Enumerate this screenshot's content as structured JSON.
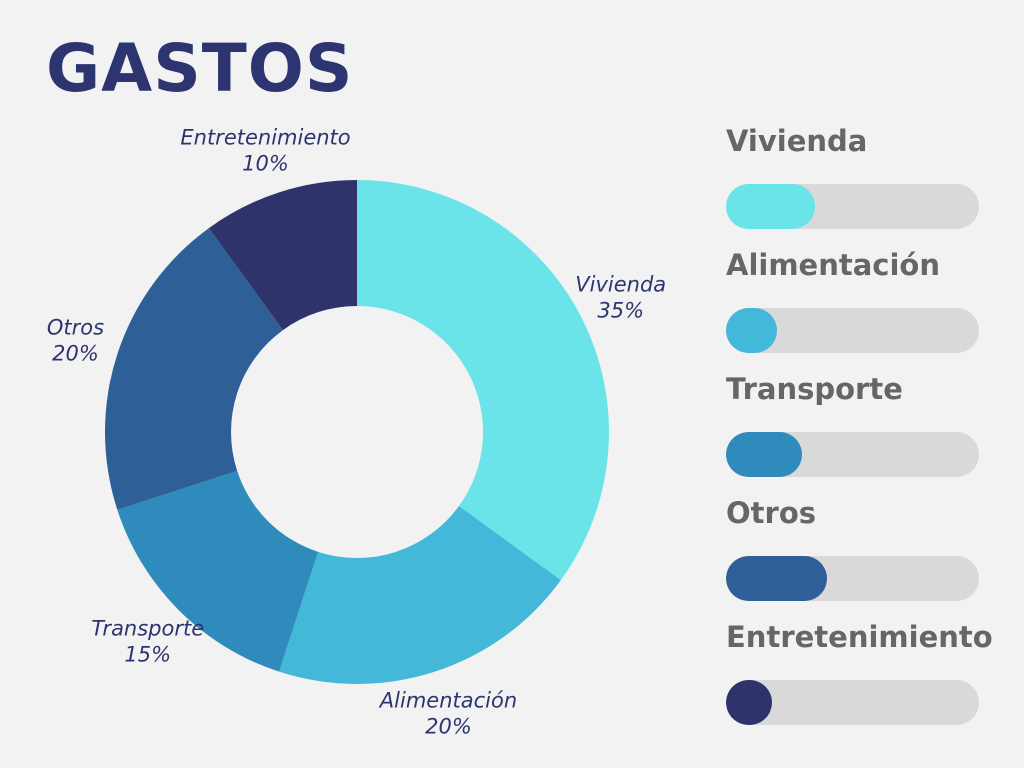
{
  "title": "GASTOS",
  "chart_data": {
    "type": "pie",
    "variant": "donut",
    "slices": [
      {
        "name": "Vivienda",
        "value": 35,
        "label": "35%",
        "color": "#6ae4e8"
      },
      {
        "name": "Alimentación",
        "value": 20,
        "label": "20%",
        "color": "#43b8d8"
      },
      {
        "name": "Transporte",
        "value": 15,
        "label": "15%",
        "color": "#2e8bbb"
      },
      {
        "name": "Otros",
        "value": 20,
        "label": "20%",
        "color": "#2e5f97"
      },
      {
        "name": "Entretenimiento",
        "value": 10,
        "label": "10%",
        "color": "#2f336c"
      }
    ]
  },
  "legend": [
    {
      "label": "Vivienda",
      "level": 0.35,
      "color": "#6ae4e8"
    },
    {
      "label": "Alimentación",
      "level": 0.2,
      "color": "#43b8d8"
    },
    {
      "label": "Transporte",
      "level": 0.3,
      "color": "#2e8bbb"
    },
    {
      "label": "Otros",
      "level": 0.4,
      "color": "#2e5f97"
    },
    {
      "label": "Entretenimiento",
      "level": 0.18,
      "color": "#2f336c"
    }
  ]
}
